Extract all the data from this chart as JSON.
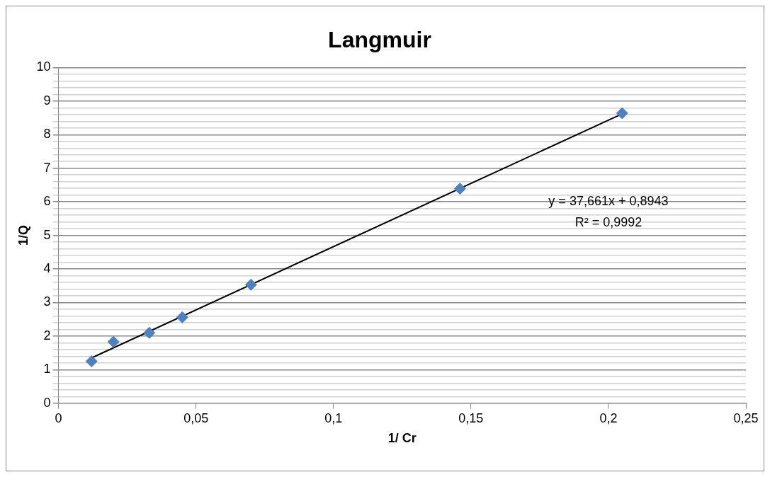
{
  "chart_data": {
    "type": "scatter",
    "title": "Langmuir",
    "xlabel": "1/ Cr",
    "ylabel": "1/Q",
    "x": [
      0.012,
      0.02,
      0.033,
      0.045,
      0.07,
      0.146,
      0.205
    ],
    "series": [
      {
        "type": "scatter",
        "color": "#4f81bd",
        "values": [
          1.25,
          1.83,
          2.1,
          2.56,
          3.53,
          6.39,
          8.64
        ]
      },
      {
        "type": "line",
        "color": "#000000",
        "x": [
          0.012,
          0.205
        ],
        "values": [
          1.35,
          8.62
        ],
        "marker": "none"
      }
    ],
    "marker": "diamond",
    "line_style": "solid",
    "xlim": [
      0,
      0.25
    ],
    "xticks": [
      0,
      {
        "value": 0.05,
        "label": "0,05"
      },
      {
        "value": 0.1,
        "label": "0,1"
      },
      {
        "value": 0.15,
        "label": "0,15"
      },
      {
        "value": 0.2,
        "label": "0,2"
      },
      {
        "value": 0.25,
        "label": "0,25"
      }
    ],
    "ylim": [
      0,
      10
    ],
    "yticks": [
      0,
      {
        "value": 0.2,
        "label": null
      },
      {
        "value": 0.4,
        "label": null
      },
      {
        "value": 0.6,
        "label": null
      },
      {
        "value": 0.8,
        "label": null
      },
      1,
      {
        "value": 1.2,
        "label": null
      },
      {
        "value": 1.4,
        "label": null
      },
      {
        "value": 1.6,
        "label": null
      },
      {
        "value": 1.8,
        "label": null
      },
      2,
      {
        "value": 2.2,
        "label": null
      },
      {
        "value": 2.4,
        "label": null
      },
      {
        "value": 2.6,
        "label": null
      },
      {
        "value": 2.8,
        "label": null
      },
      3,
      {
        "value": 3.2,
        "label": null
      },
      {
        "value": 3.4,
        "label": null
      },
      {
        "value": 3.6,
        "label": null
      },
      {
        "value": 3.8,
        "label": null
      },
      4,
      {
        "value": 4.2,
        "label": null
      },
      {
        "value": 4.4,
        "label": null
      },
      {
        "value": 4.6,
        "label": null
      },
      {
        "value": 4.8,
        "label": null
      },
      5,
      {
        "value": 5.2,
        "label": null
      },
      {
        "value": 5.4,
        "label": null
      },
      {
        "value": 5.6,
        "label": null
      },
      {
        "value": 5.8,
        "label": null
      },
      6,
      {
        "value": 6.2,
        "label": null
      },
      {
        "value": 6.4,
        "label": null
      },
      {
        "value": 6.6,
        "label": null
      },
      {
        "value": 6.8,
        "label": null
      },
      7,
      {
        "value": 7.2,
        "label": null
      },
      {
        "value": 7.4,
        "label": null
      },
      {
        "value": 7.6,
        "label": null
      },
      {
        "value": 7.8,
        "label": null
      },
      8,
      {
        "value": 8.2,
        "label": null
      },
      {
        "value": 8.4,
        "label": null
      },
      {
        "value": 8.6,
        "label": null
      },
      {
        "value": 8.8,
        "label": null
      },
      9,
      {
        "value": 9.2,
        "label": null
      },
      {
        "value": 9.4,
        "label": null
      },
      {
        "value": 9.6,
        "label": null
      },
      {
        "value": 9.8,
        "label": null
      },
      10
    ],
    "grid": "y",
    "legend": false,
    "annotations": [
      "y = 37,661x + 0,8943",
      "R² = 0,9992"
    ]
  }
}
